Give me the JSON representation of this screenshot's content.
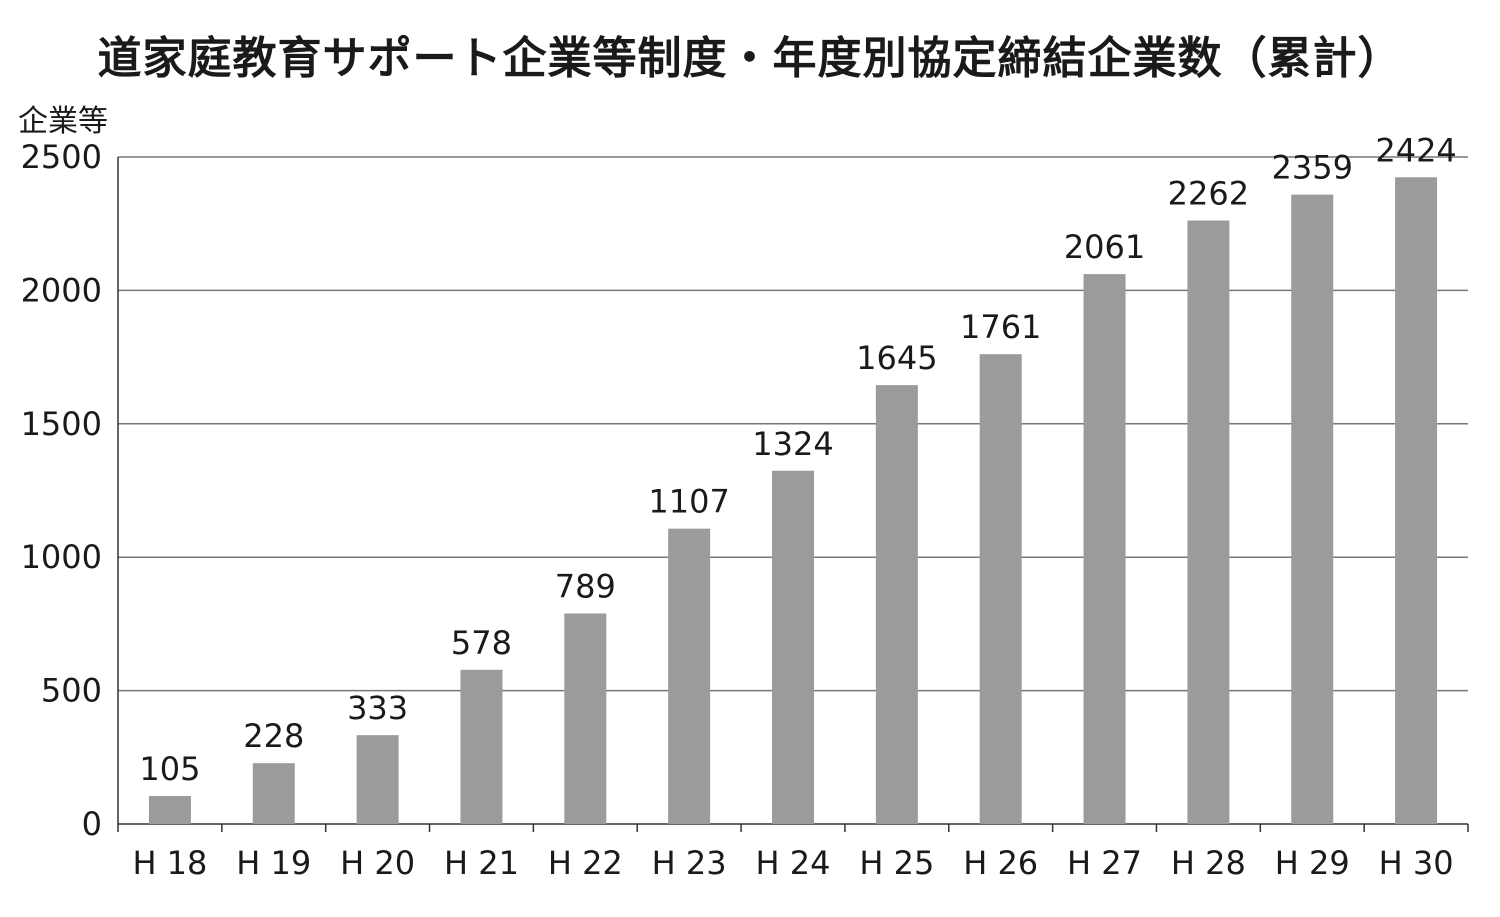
{
  "chart_data": {
    "type": "bar",
    "title": "道家庭教育サポート企業等制度・年度別協定締結企業数（累計）",
    "ylabel": "企業等",
    "xlabel": "",
    "categories": [
      "H18",
      "H19",
      "H20",
      "H21",
      "H22",
      "H23",
      "H24",
      "H25",
      "H26",
      "H27",
      "H28",
      "H29",
      "H30"
    ],
    "category_labels": [
      "H 18",
      "H 19",
      "H 20",
      "H 21",
      "H 22",
      "H 23",
      "H 24",
      "H 25",
      "H 26",
      "H 27",
      "H 28",
      "H 29",
      "H 30"
    ],
    "values": [
      105,
      228,
      333,
      578,
      789,
      1107,
      1324,
      1645,
      1761,
      2061,
      2262,
      2359,
      2424
    ],
    "ylim": [
      0,
      2500
    ],
    "yticks": [
      0,
      500,
      1000,
      1500,
      2000,
      2500
    ],
    "grid": true,
    "bar_color": "#9b9b9b",
    "grid_color": "#777777",
    "axis_color": "#333333"
  }
}
